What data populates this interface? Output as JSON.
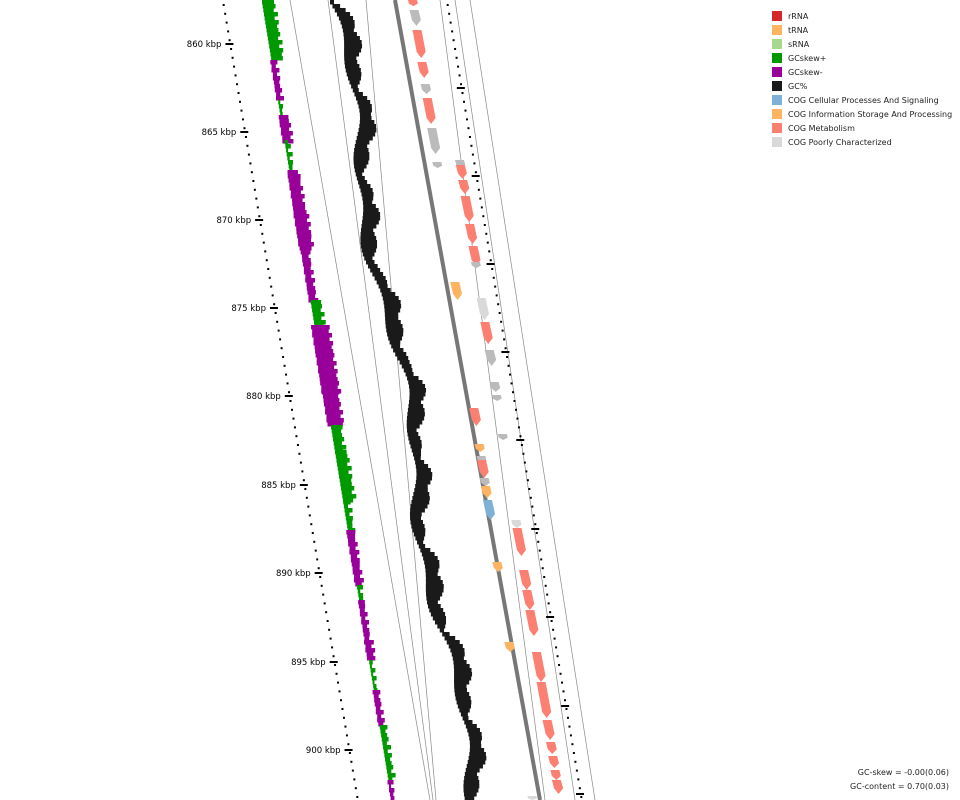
{
  "map": {
    "tick_labels": [
      "860 kbp",
      "865 kbp",
      "870 kbp",
      "875 kbp",
      "880 kbp",
      "885 kbp",
      "890 kbp",
      "895 kbp",
      "900 kbp"
    ]
  },
  "legend": {
    "items": [
      {
        "label": "rRNA",
        "color": "#d62728"
      },
      {
        "label": "tRNA",
        "color": "#fdb462"
      },
      {
        "label": "sRNA",
        "color": "#a6d98f"
      },
      {
        "label": "GCskew+",
        "color": "#009900"
      },
      {
        "label": "GCskew-",
        "color": "#990099"
      },
      {
        "label": "GC%",
        "color": "#1a1a1a"
      },
      {
        "label": "COG Cellular Processes And Signaling",
        "color": "#7fb0d5"
      },
      {
        "label": "COG Information Storage And Processing",
        "color": "#fdb462"
      },
      {
        "label": "COG Metabolism",
        "color": "#fb8072"
      },
      {
        "label": "COG Poorly Characterized",
        "color": "#d9d9d9"
      }
    ]
  },
  "stats": {
    "gc_skew": "GC-skew = -0.00(0.06)",
    "gc_content": "GC-content = 0.70(0.03)"
  }
}
